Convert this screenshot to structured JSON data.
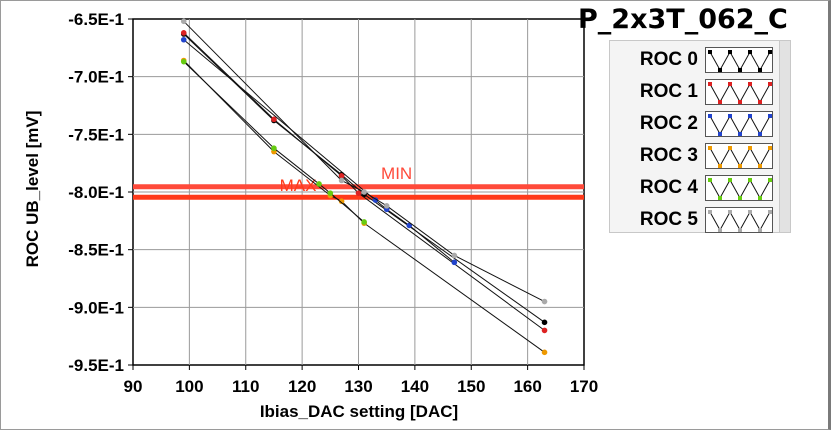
{
  "title": "P_2x3T_062_C",
  "chart_data": {
    "type": "scatter",
    "title": "P_2x3T_062_C",
    "xlabel": "Ibias_DAC setting [DAC]",
    "ylabel": "ROC UB_level [mV]",
    "xlim": [
      90,
      170
    ],
    "ylim": [
      -0.95,
      -0.65
    ],
    "xticks": [
      90,
      100,
      110,
      120,
      130,
      140,
      150,
      160,
      170
    ],
    "xtick_labels": [
      "90",
      "100",
      "110",
      "120",
      "130",
      "140",
      "150",
      "160",
      "170"
    ],
    "yticks": [
      -0.65,
      -0.7,
      -0.75,
      -0.8,
      -0.85,
      -0.9,
      -0.95
    ],
    "ytick_labels": [
      "-6.5E-1",
      "-7.0E-1",
      "-7.5E-1",
      "-8.0E-1",
      "-8.5E-1",
      "-9.0E-1",
      "-9.5E-1"
    ],
    "grid": true,
    "legend_position": "right",
    "thresholds": [
      {
        "label": "MIN",
        "y": -0.7955,
        "color": "#ff4a3a"
      },
      {
        "label": "MAX",
        "y": -0.8045,
        "color": "#ff3a1a"
      }
    ],
    "series": [
      {
        "name": "ROC 0",
        "color": "#000000",
        "x": [
          99,
          115,
          127,
          131,
          163
        ],
        "y": [
          -0.663,
          -0.738,
          -0.785,
          -0.802,
          -0.913
        ]
      },
      {
        "name": "ROC 1",
        "color": "#dd2222",
        "x": [
          99,
          115,
          127,
          130,
          163
        ],
        "y": [
          -0.662,
          -0.737,
          -0.786,
          -0.801,
          -0.92
        ]
      },
      {
        "name": "ROC 2",
        "color": "#2244cc",
        "x": [
          99,
          133,
          135,
          139,
          147
        ],
        "y": [
          -0.668,
          -0.807,
          -0.815,
          -0.829,
          -0.861
        ]
      },
      {
        "name": "ROC 3",
        "color": "#ee9900",
        "x": [
          99,
          115,
          125,
          127,
          131,
          163
        ],
        "y": [
          -0.686,
          -0.765,
          -0.803,
          -0.808,
          -0.827,
          -0.939
        ]
      },
      {
        "name": "ROC 4",
        "color": "#66cc11",
        "x": [
          99,
          115,
          123,
          125,
          131
        ],
        "y": [
          -0.687,
          -0.762,
          -0.793,
          -0.801,
          -0.826
        ]
      },
      {
        "name": "ROC 5",
        "color": "#aaaaaa",
        "x": [
          99,
          127,
          131,
          135,
          147,
          163
        ],
        "y": [
          -0.652,
          -0.79,
          -0.8,
          -0.812,
          -0.855,
          -0.895
        ]
      }
    ]
  }
}
